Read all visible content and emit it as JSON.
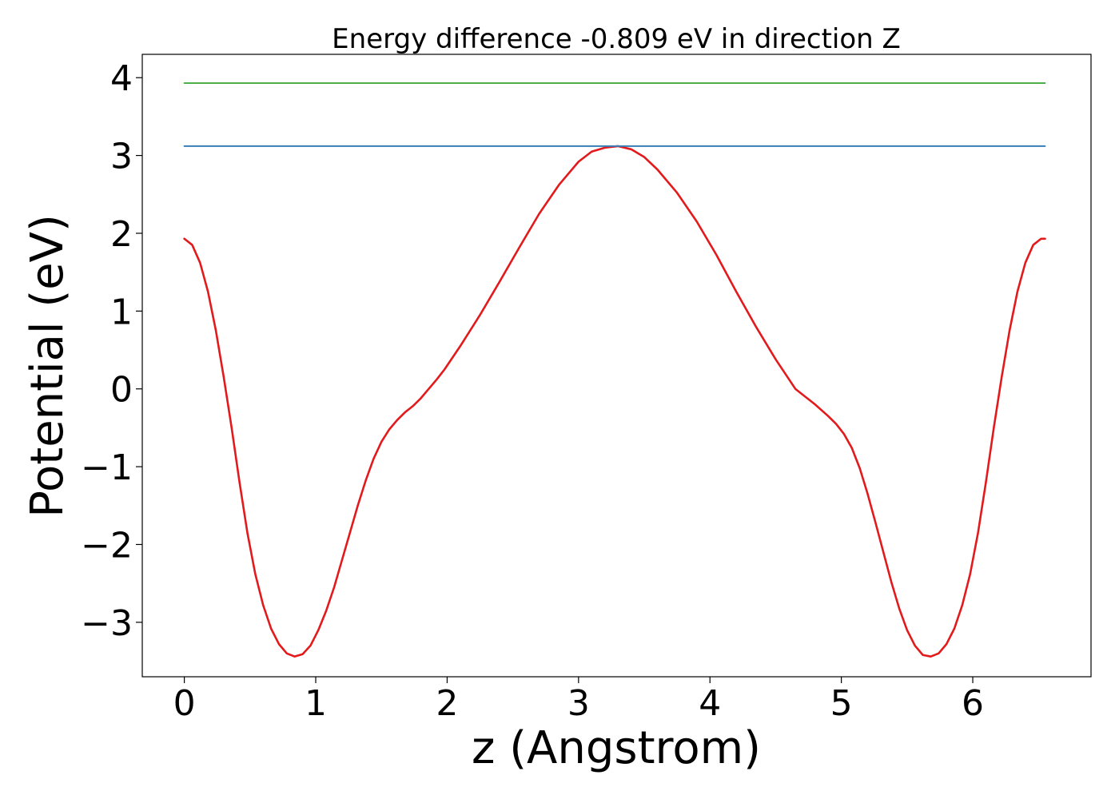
{
  "chart_data": {
    "type": "line",
    "title": "Energy difference -0.809 eV in direction Z",
    "xlabel": "z (Angstrom)",
    "ylabel": "Potential (eV)",
    "xlim": [
      -0.32,
      6.9
    ],
    "ylim": [
      -3.7,
      4.3
    ],
    "xticks": [
      0,
      1,
      2,
      3,
      4,
      5,
      6
    ],
    "yticks": [
      -3,
      -2,
      -1,
      0,
      1,
      2,
      3,
      4
    ],
    "ytick_labels": [
      "−3",
      "−2",
      "−1",
      "0",
      "1",
      "2",
      "3",
      "4"
    ],
    "grid": false,
    "legend": "none",
    "series": [
      {
        "color": "#e31a1c",
        "x": [
          0,
          0.06,
          0.12,
          0.18,
          0.24,
          0.3,
          0.36,
          0.42,
          0.48,
          0.54,
          0.6,
          0.66,
          0.72,
          0.78,
          0.84,
          0.9,
          0.96,
          1.02,
          1.08,
          1.14,
          1.2,
          1.26,
          1.32,
          1.38,
          1.44,
          1.5,
          1.56,
          1.62,
          1.68,
          1.74,
          1.8,
          1.86,
          1.92,
          1.98,
          2.1,
          2.25,
          2.4,
          2.55,
          2.7,
          2.85,
          3.0,
          3.1,
          3.2,
          3.3,
          3.4,
          3.5,
          3.6,
          3.75,
          3.9,
          4.05,
          4.2,
          4.35,
          4.5,
          4.65,
          4.8,
          4.9,
          4.96,
          5.02,
          5.08,
          5.14,
          5.2,
          5.26,
          5.32,
          5.38,
          5.44,
          5.5,
          5.56,
          5.62,
          5.68,
          5.74,
          5.8,
          5.86,
          5.92,
          5.98,
          6.04,
          6.1,
          6.16,
          6.22,
          6.28,
          6.34,
          6.4,
          6.46,
          6.52,
          6.55
        ],
        "y": [
          1.93,
          1.85,
          1.62,
          1.25,
          0.75,
          0.15,
          -0.5,
          -1.2,
          -1.85,
          -2.38,
          -2.78,
          -3.08,
          -3.28,
          -3.4,
          -3.44,
          -3.41,
          -3.3,
          -3.1,
          -2.85,
          -2.55,
          -2.2,
          -1.85,
          -1.5,
          -1.18,
          -0.9,
          -0.68,
          -0.52,
          -0.4,
          -0.3,
          -0.22,
          -0.12,
          0.0,
          0.12,
          0.25,
          0.55,
          0.95,
          1.38,
          1.82,
          2.25,
          2.62,
          2.92,
          3.05,
          3.1,
          3.12,
          3.08,
          2.98,
          2.82,
          2.52,
          2.15,
          1.72,
          1.25,
          0.8,
          0.38,
          0.0,
          -0.2,
          -0.35,
          -0.45,
          -0.58,
          -0.76,
          -1.02,
          -1.35,
          -1.72,
          -2.1,
          -2.48,
          -2.82,
          -3.1,
          -3.3,
          -3.42,
          -3.44,
          -3.4,
          -3.28,
          -3.08,
          -2.78,
          -2.38,
          -1.85,
          -1.2,
          -0.5,
          0.15,
          0.75,
          1.25,
          1.62,
          1.85,
          1.93,
          1.93
        ]
      },
      {
        "color": "#377eb8",
        "x": [
          0,
          6.55
        ],
        "y": [
          3.12,
          3.12
        ]
      },
      {
        "color": "#4daf4a",
        "x": [
          0,
          6.55
        ],
        "y": [
          3.93,
          3.93
        ]
      }
    ]
  }
}
